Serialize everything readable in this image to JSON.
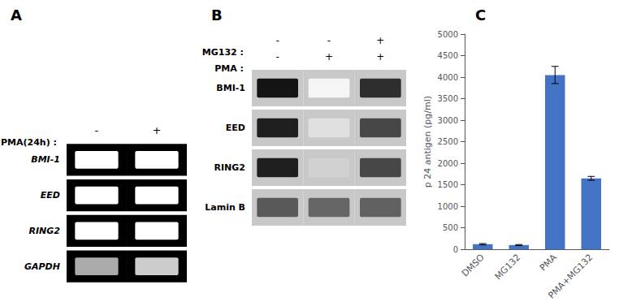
{
  "chart_data": [
    {
      "type": "gel",
      "title": "A",
      "xlabel": "PMA(24h) :",
      "categories": [
        "-",
        "+"
      ],
      "rows": [
        "BMI-1",
        "EED",
        "RING2",
        "GAPDH"
      ],
      "colors": [
        "#ffffff",
        "#ffffff",
        "#ffffff",
        "#ffffff",
        "#ffffff",
        "#ffffff",
        "#aaaaaa",
        "#cccccc"
      ]
    },
    {
      "type": "heatmap",
      "title": "B",
      "header_rows": [
        {
          "name": "MG132 :",
          "labels": [
            "-",
            "-",
            "+"
          ]
        },
        {
          "name": "PMA :",
          "labels": [
            "-",
            "+",
            "+"
          ]
        }
      ],
      "rows": [
        "BMI-1",
        "EED",
        "RING2",
        "Lamin B"
      ],
      "values": [
        [
          0.92,
          0.04,
          0.82
        ],
        [
          0.88,
          0.12,
          0.72
        ],
        [
          0.88,
          0.18,
          0.72
        ],
        [
          0.65,
          0.6,
          0.62
        ]
      ],
      "zlim": [
        0,
        1
      ]
    },
    {
      "type": "bar",
      "title": "C",
      "categories": [
        "DMSO",
        "MG132",
        "PMA",
        "PMA+MG132"
      ],
      "values": [
        120,
        100,
        4050,
        1650
      ],
      "errors": [
        15,
        12,
        200,
        45
      ],
      "color": "#4472C4",
      "ylabel": "p 24 antigen (pg/ml)",
      "ylim": [
        0,
        5000
      ],
      "yticks": [
        0,
        500,
        1000,
        1500,
        2000,
        2500,
        3000,
        3500,
        4000,
        4500,
        5000
      ],
      "grid": false
    }
  ]
}
